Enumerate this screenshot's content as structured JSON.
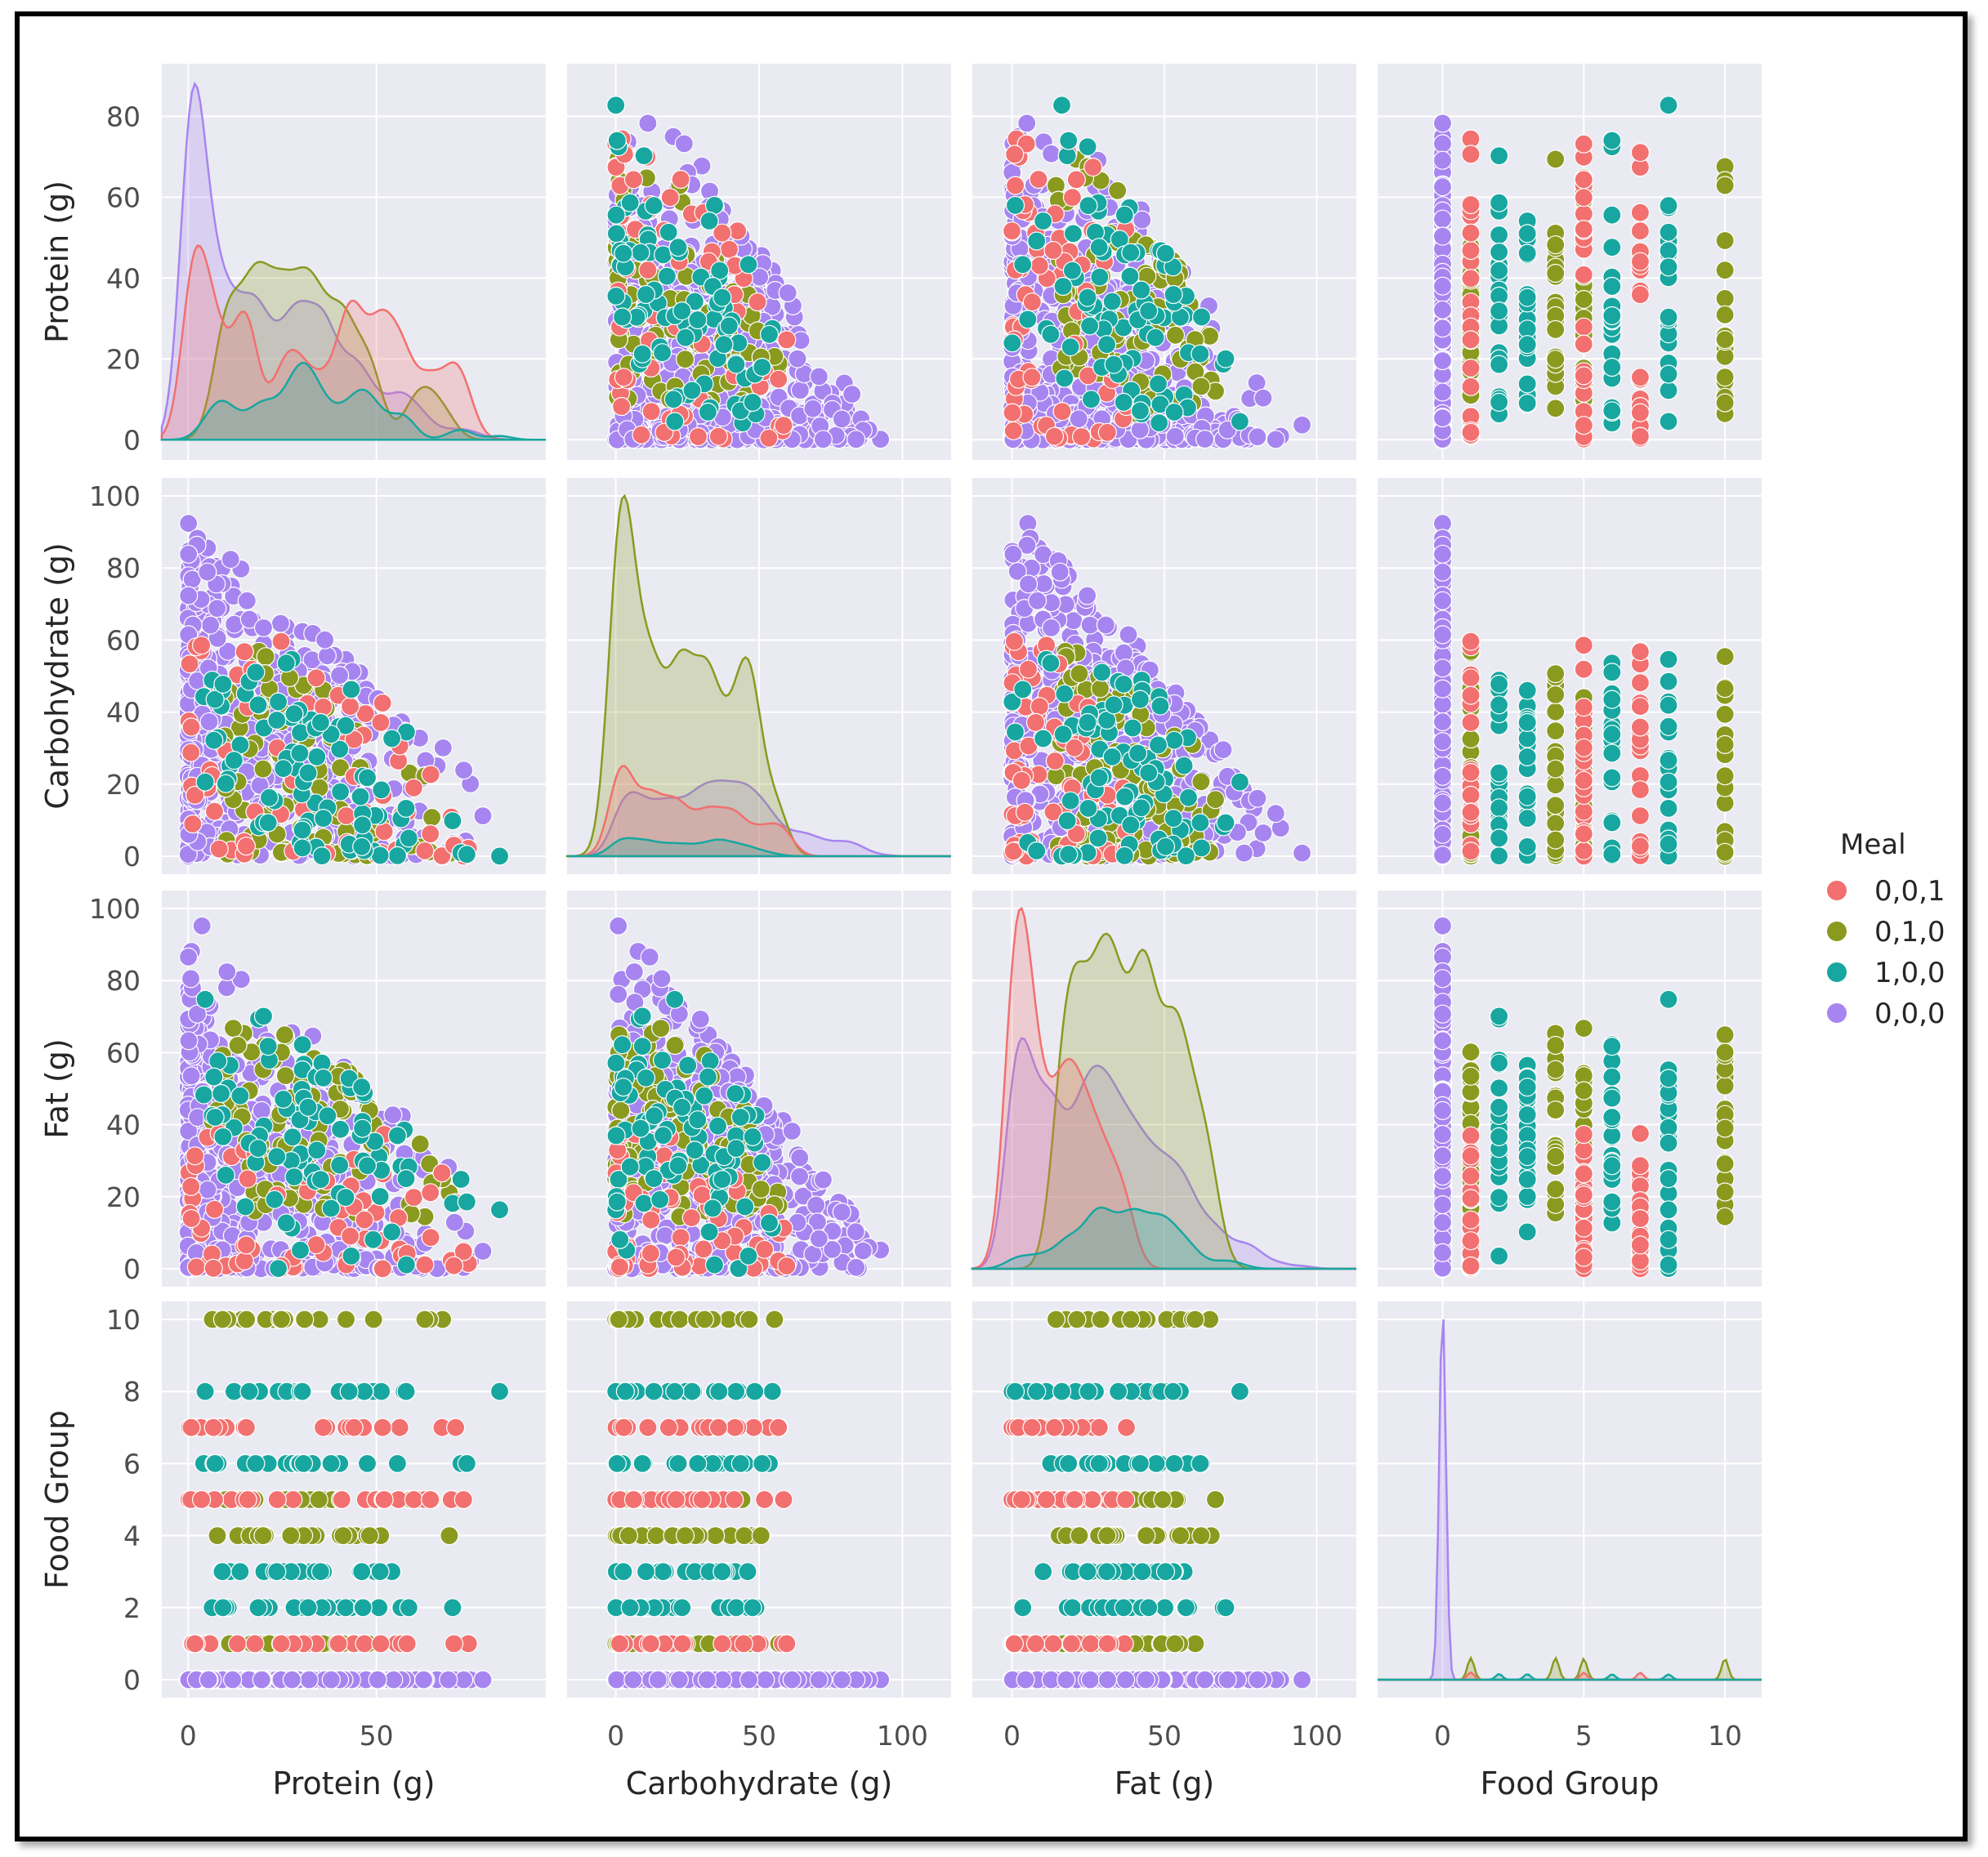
{
  "chart_data": {
    "type": "pairplot",
    "variables": [
      "Protein (g)",
      "Carbohydrate (g)",
      "Fat (g)",
      "Food Group"
    ],
    "axes": {
      "Protein (g)": {
        "range": [
          -7,
          95
        ],
        "ticks": [
          0,
          50
        ],
        "ytick_labels": [
          "0",
          "20",
          "40",
          "60",
          "80"
        ],
        "yticks": [
          0,
          20,
          40,
          60,
          80
        ],
        "yrange": [
          -5,
          93
        ]
      },
      "Carbohydrate (g)": {
        "range": [
          -17,
          117
        ],
        "ticks": [
          0,
          50,
          100
        ],
        "yticks": [
          0,
          20,
          40,
          60,
          80,
          100
        ],
        "yrange": [
          -5,
          105
        ]
      },
      "Fat (g)": {
        "range": [
          -13,
          113
        ],
        "ticks": [
          0,
          50,
          100
        ],
        "yticks": [
          0,
          20,
          40,
          60,
          80,
          100
        ],
        "yrange": [
          -5,
          105
        ]
      },
      "Food Group": {
        "range": [
          -2.3,
          11.3
        ],
        "ticks": [
          0,
          5,
          10
        ],
        "yticks": [
          0,
          2,
          4,
          6,
          8,
          10
        ],
        "yrange": [
          -0.5,
          10.5
        ]
      }
    },
    "xlabels": [
      "Protein (g)",
      "Carbohydrate (g)",
      "Fat (g)",
      "Food Group"
    ],
    "ylabels": [
      "Protein (g)",
      "Carbohydrate (g)",
      "Fat (g)",
      "Food Group"
    ],
    "legend": {
      "title": "Meal",
      "placement": "right",
      "entries": [
        {
          "label": "0,0,1",
          "color": "#f2706f"
        },
        {
          "label": "0,1,0",
          "color": "#8a9a1f"
        },
        {
          "label": "1,0,0",
          "color": "#17a7a0"
        },
        {
          "label": "0,0,0",
          "color": "#a785f0"
        }
      ]
    },
    "food_groups_by_meal": {
      "0,0,1": [
        1,
        5,
        7
      ],
      "0,1,0": [
        1,
        4,
        5,
        10
      ],
      "1,0,0": [
        2,
        3,
        6,
        8
      ],
      "0,0,0": [
        0
      ]
    },
    "diagonal_kde_peaks": {
      "Protein (g)": {
        "0,0,0": 88,
        "0,0,1": 48,
        "0,1,0": 44,
        "1,0,0": 19
      },
      "Carbohydrate (g)": {
        "0,1,0": 100,
        "0,0,1": 25,
        "0,0,0": 21,
        "1,0,0": 5
      },
      "Fat (g)": {
        "0,0,1": 100,
        "0,1,0": 93,
        "0,0,0": 64,
        "1,0,0": 17
      },
      "Food Group": {
        "0,0,0": 10,
        "0,1,0": 0.6,
        "0,0,1": 0.2,
        "1,0,0": 0.15
      }
    }
  }
}
